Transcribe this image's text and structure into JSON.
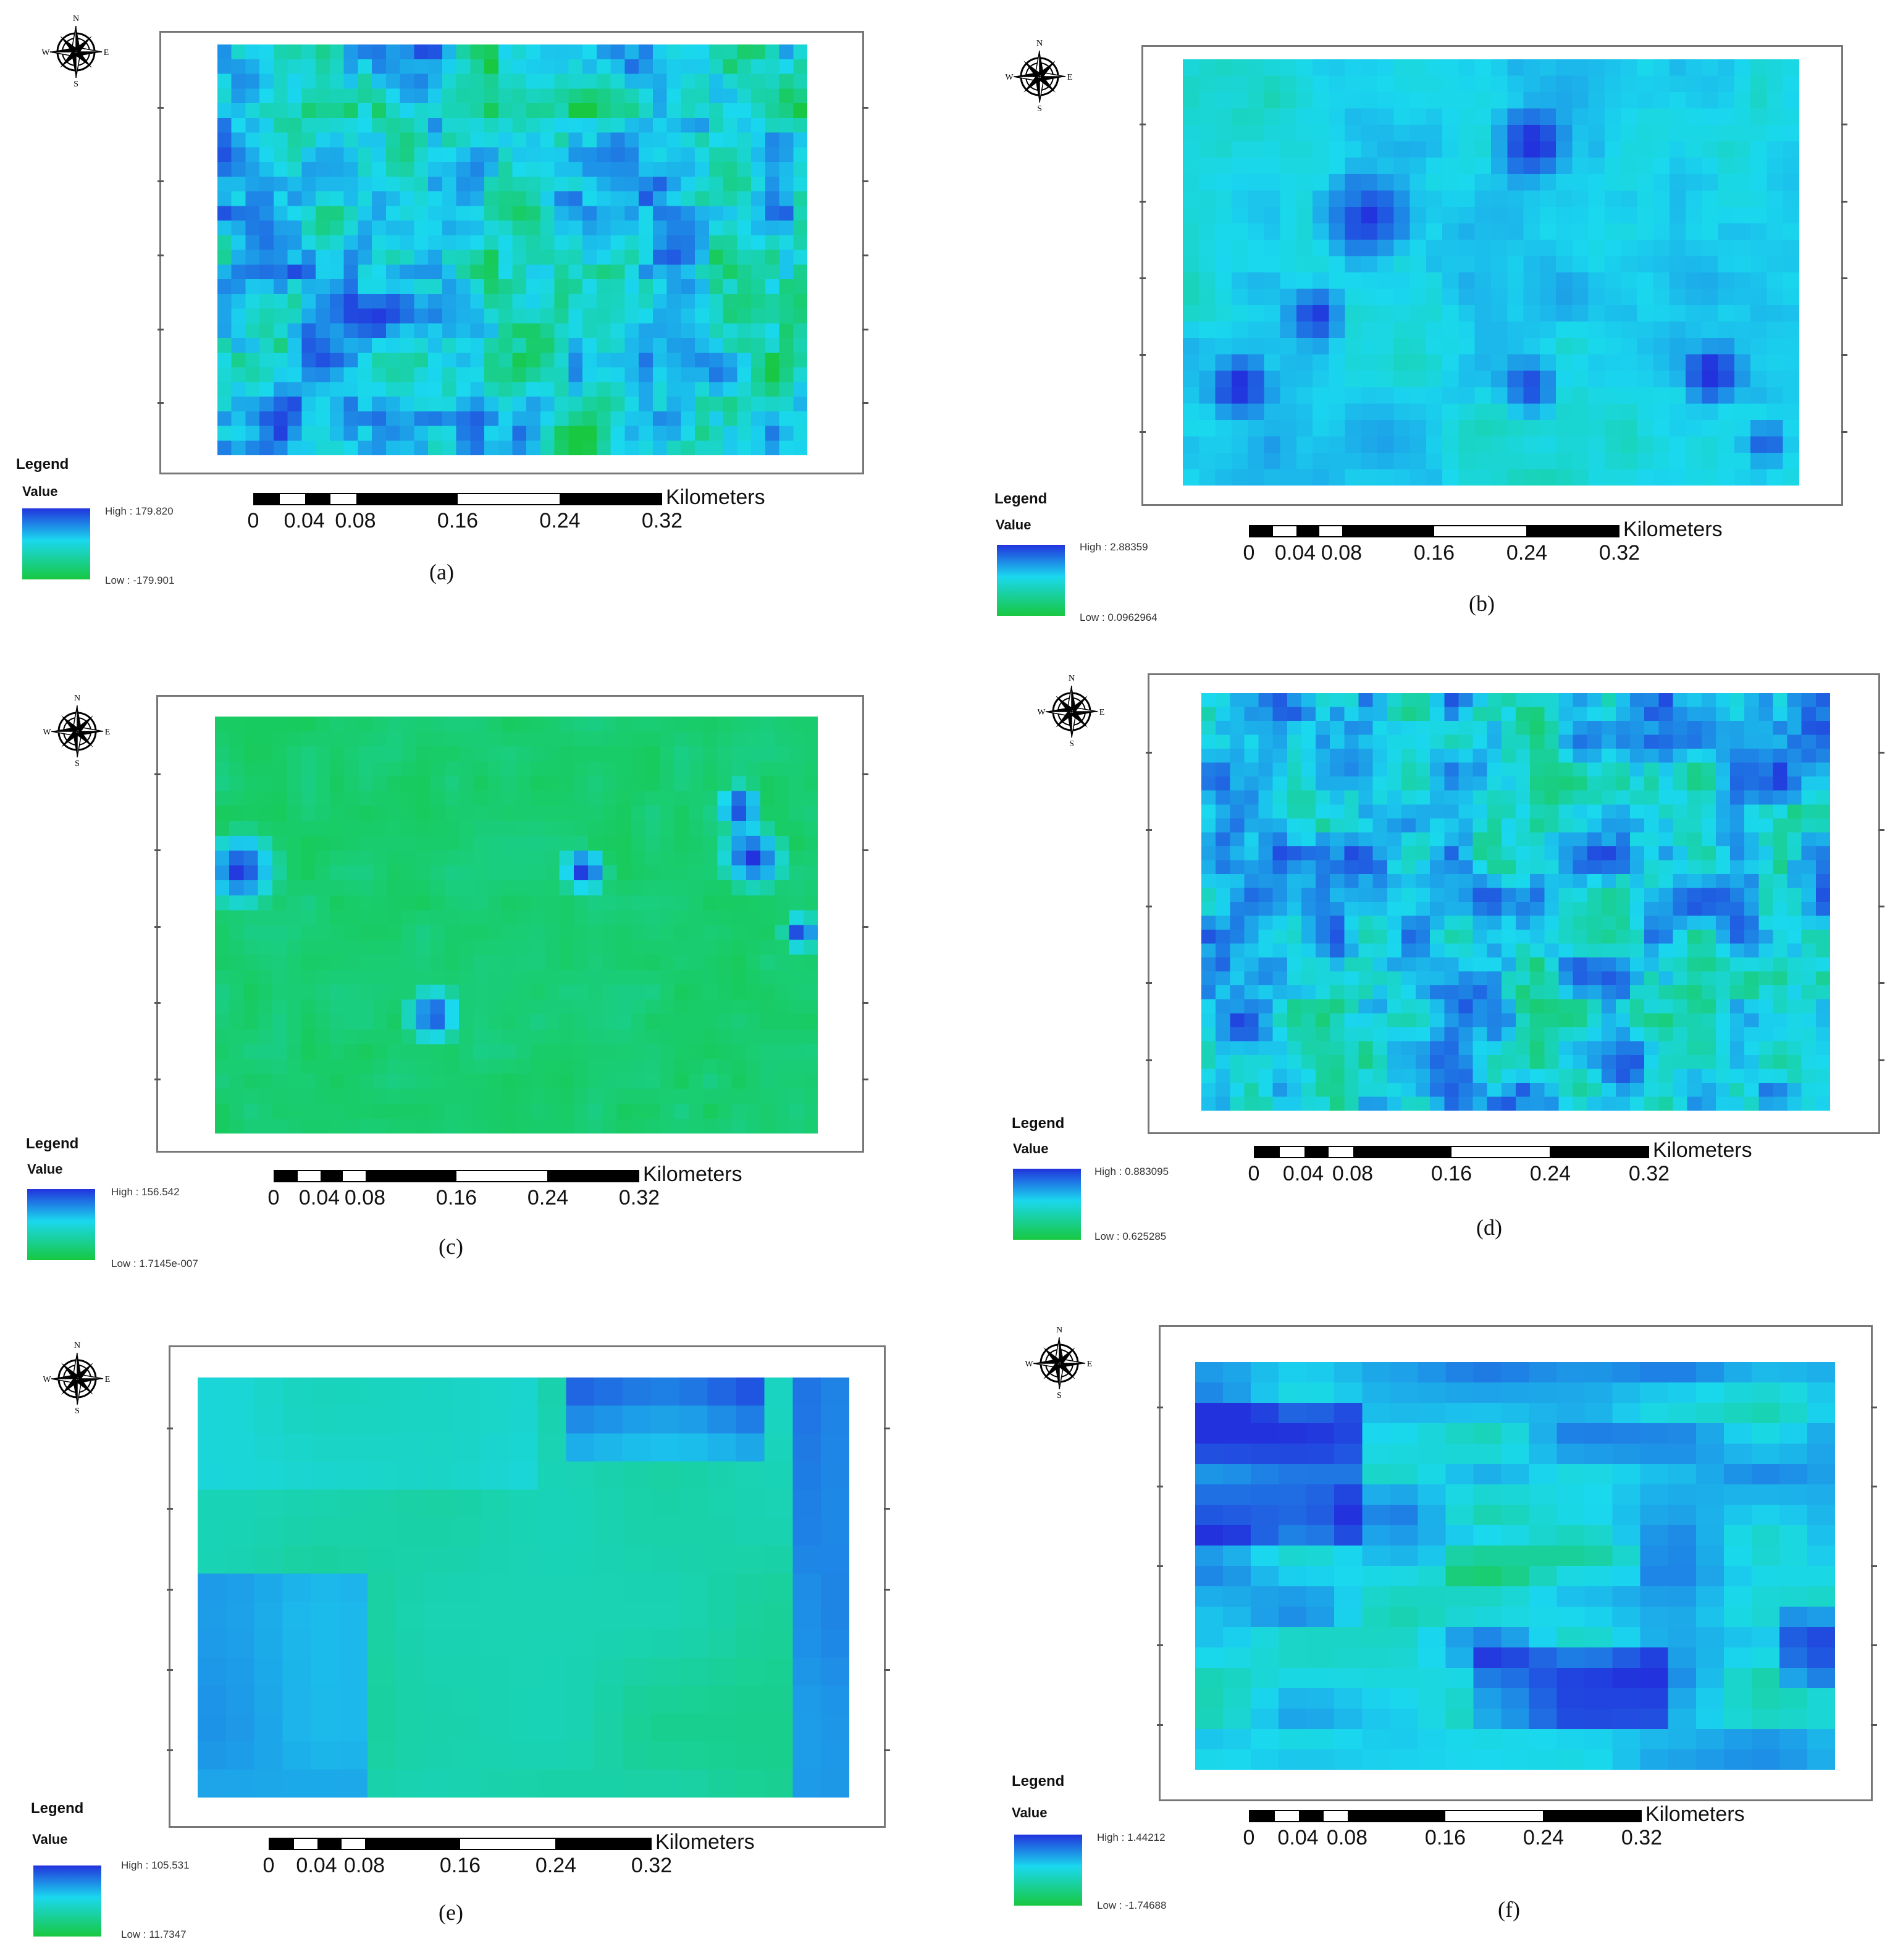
{
  "panels": [
    {
      "id": "a",
      "caption": "(a)",
      "legend_title": "Legend",
      "legend_value": "Value",
      "high": "High : 179.820",
      "low": "Low : -179.901"
    },
    {
      "id": "b",
      "caption": "(b)",
      "legend_title": "Legend",
      "legend_value": "Value",
      "high": "High : 2.88359",
      "low": "Low : 0.0962964"
    },
    {
      "id": "c",
      "caption": "(c)",
      "legend_title": "Legend",
      "legend_value": "Value",
      "high": "High : 156.542",
      "low": "Low : 1.7145e-007"
    },
    {
      "id": "d",
      "caption": "(d)",
      "legend_title": "Legend",
      "legend_value": "Value",
      "high": "High : 0.883095",
      "low": "Low : 0.625285"
    },
    {
      "id": "e",
      "caption": "(e)",
      "legend_title": "Legend",
      "legend_value": "Value",
      "high": "High : 105.531",
      "low": "Low : 11.7347"
    },
    {
      "id": "f",
      "caption": "(f)",
      "legend_title": "Legend",
      "legend_value": "Value",
      "high": "High : 1.44212",
      "low": "Low : -1.74688"
    }
  ],
  "scale": {
    "unit": "Kilometers",
    "ticks": [
      "0",
      "0.04",
      "0.08",
      "0.16",
      "0.24",
      "0.32"
    ]
  },
  "compass": {
    "n": "N",
    "s": "S",
    "e": "E",
    "w": "W",
    "icon": "north-arrow-compass-icon"
  },
  "colors": {
    "high": "#2233dd",
    "mid": "#1ad8ee",
    "low": "#18c840"
  }
}
